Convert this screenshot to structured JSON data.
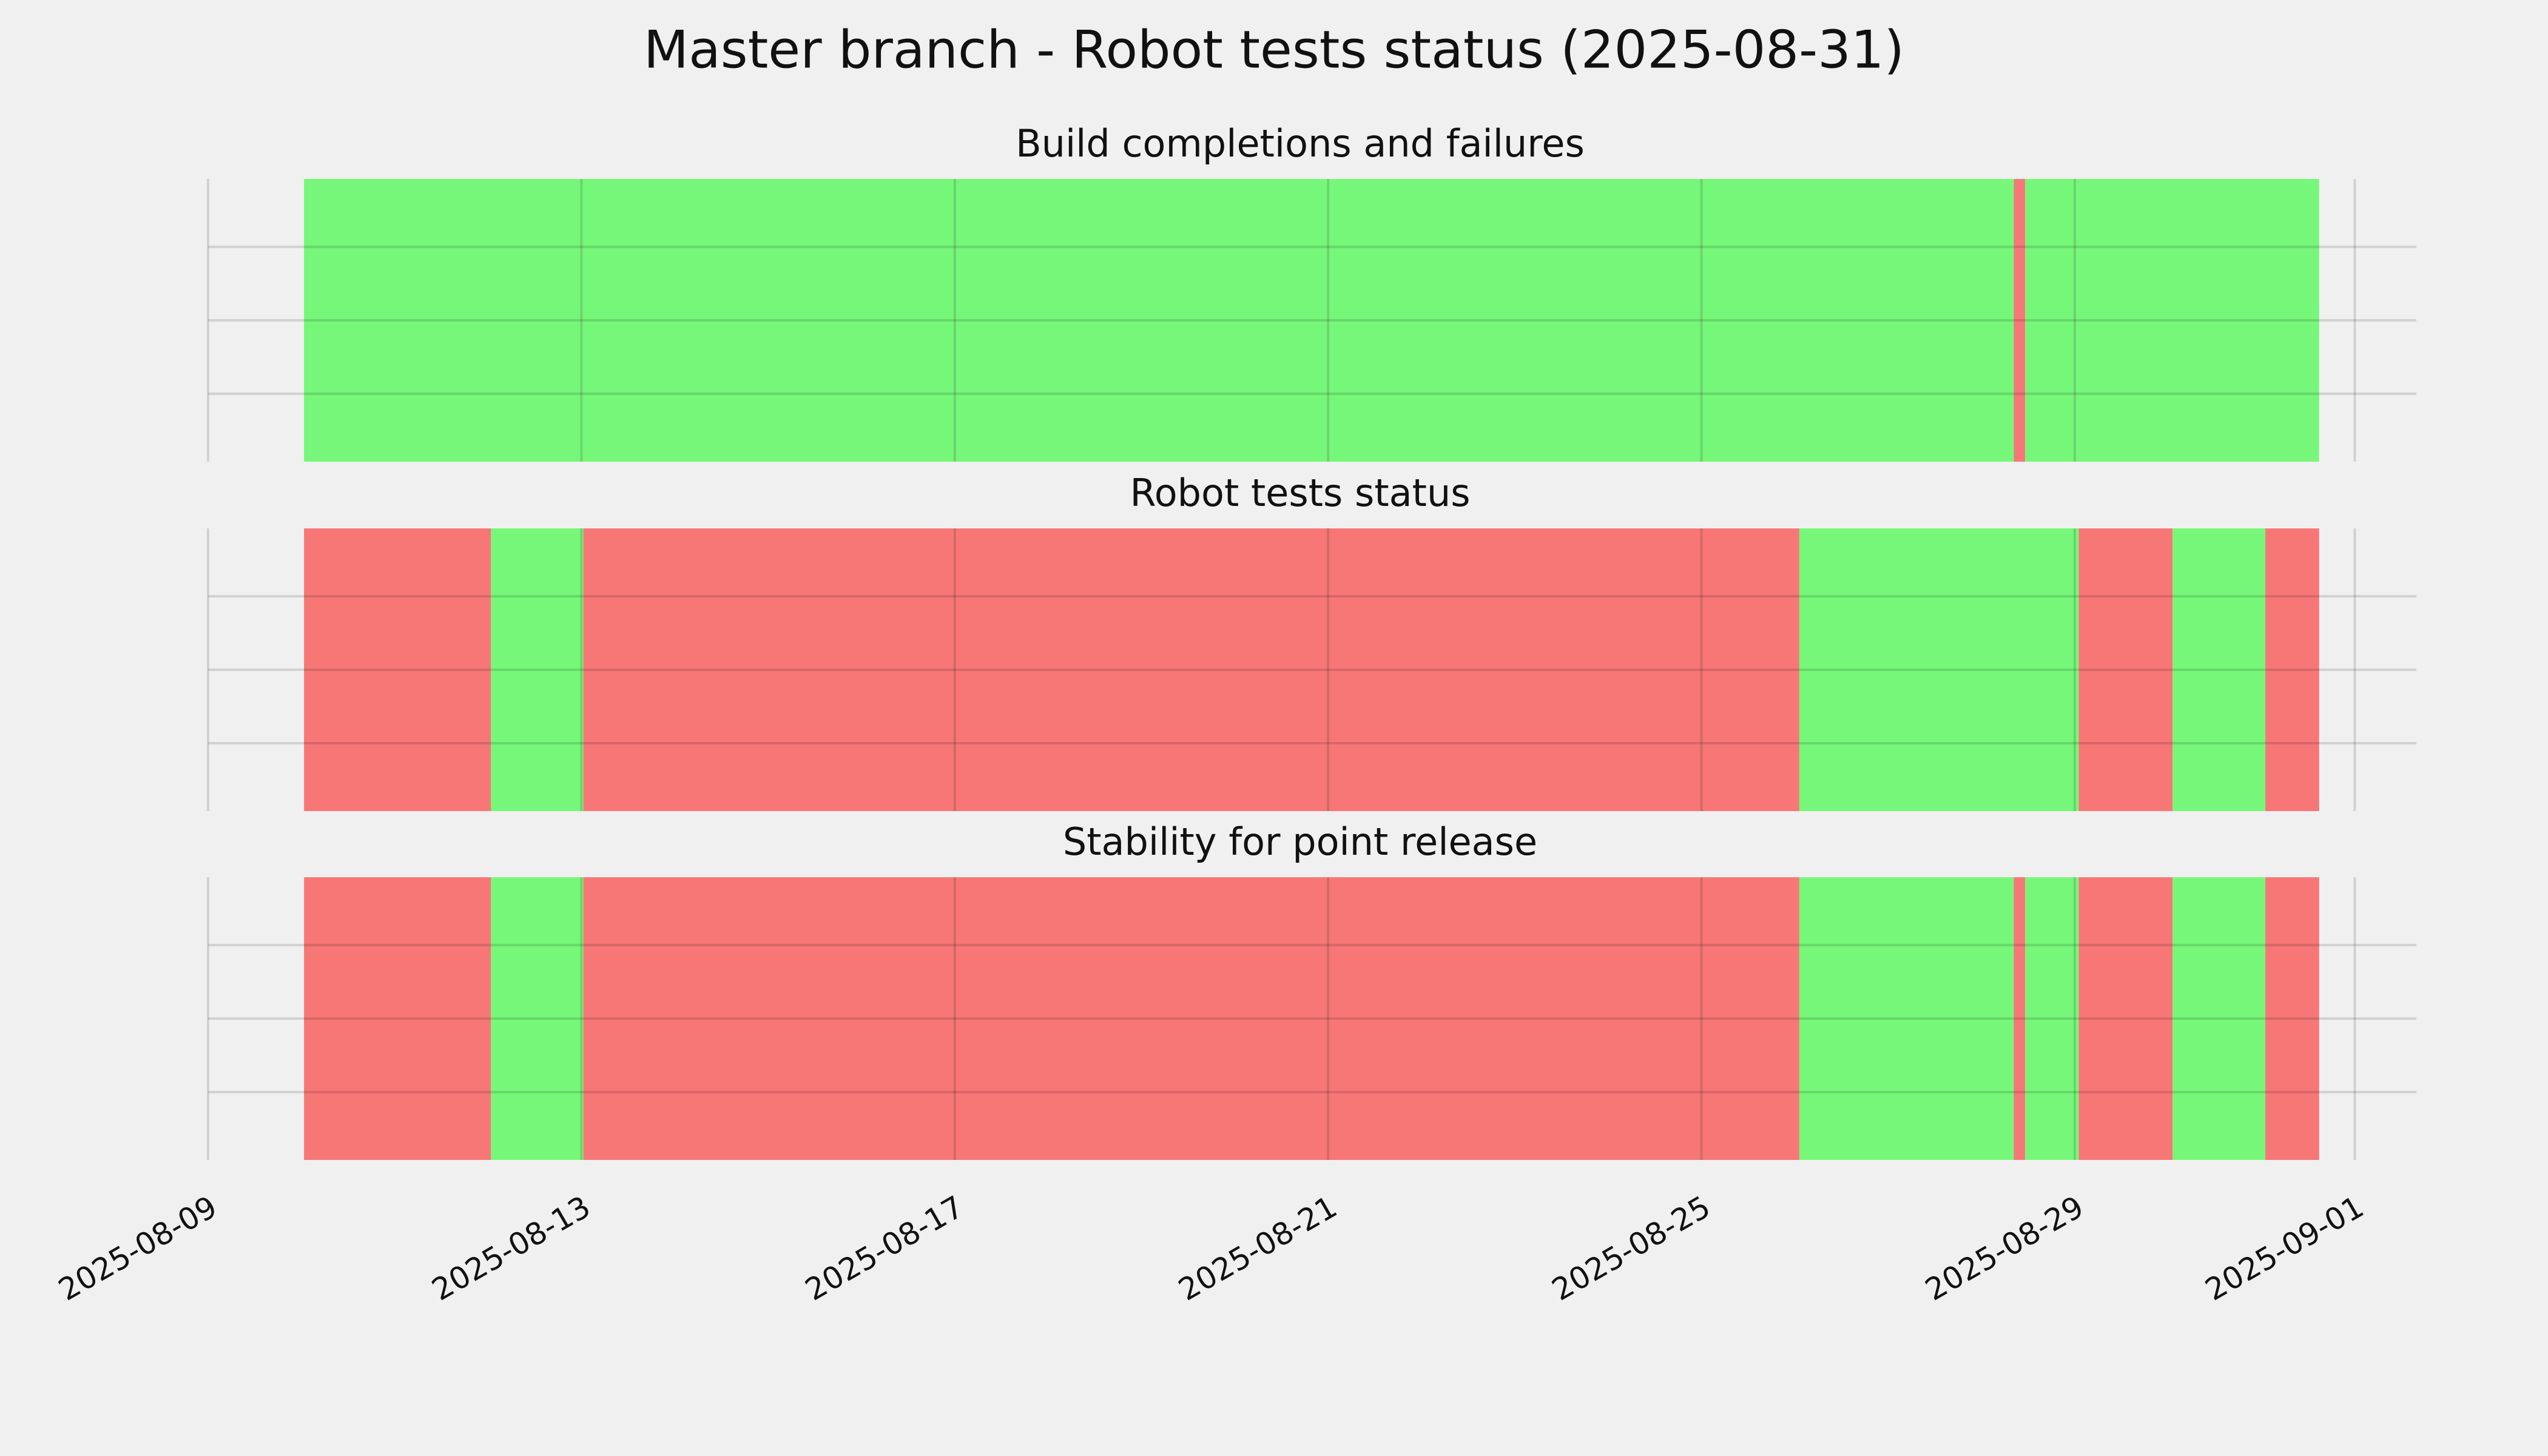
{
  "title": "Master branch - Robot tests status (2025-08-31)",
  "chart_data": {
    "type": "timeline",
    "xlim": [
      "2025-08-09T00:00",
      "2025-09-01T15:50"
    ],
    "xticks": [
      "2025-08-09",
      "2025-08-13",
      "2025-08-17",
      "2025-08-21",
      "2025-08-25",
      "2025-08-29",
      "2025-09-01"
    ],
    "grid": true,
    "panels": [
      {
        "title": "Build completions and failures",
        "starts": [
          "2025-08-10T00:40",
          "2025-08-28T08:20",
          "2025-08-28T11:15"
        ],
        "ends": [
          "2025-08-28T08:20",
          "2025-08-28T11:15",
          "2025-08-31T14:50"
        ],
        "colors": [
          "#77f77a",
          "#f77777",
          "#77f77a"
        ]
      },
      {
        "title": "Robot tests status",
        "starts": [
          "2025-08-10T00:40",
          "2025-08-12T00:45",
          "2025-08-13T00:30",
          "2025-08-26T01:10",
          "2025-08-29T01:00",
          "2025-08-30T01:10",
          "2025-08-31T01:00"
        ],
        "ends": [
          "2025-08-12T00:45",
          "2025-08-13T00:30",
          "2025-08-26T01:10",
          "2025-08-29T01:00",
          "2025-08-30T01:10",
          "2025-08-31T01:00",
          "2025-08-31T14:50"
        ],
        "colors": [
          "#f77777",
          "#77f77a",
          "#f77777",
          "#77f77a",
          "#f77777",
          "#77f77a",
          "#f77777"
        ]
      },
      {
        "title": "Stability for point release",
        "starts": [
          "2025-08-10T00:40",
          "2025-08-12T00:45",
          "2025-08-13T00:30",
          "2025-08-26T01:10",
          "2025-08-28T08:20",
          "2025-08-28T11:15",
          "2025-08-29T01:00",
          "2025-08-30T01:10",
          "2025-08-31T01:00"
        ],
        "ends": [
          "2025-08-12T00:45",
          "2025-08-13T00:30",
          "2025-08-26T01:10",
          "2025-08-28T08:20",
          "2025-08-28T11:15",
          "2025-08-29T01:00",
          "2025-08-30T01:10",
          "2025-08-31T01:00",
          "2025-08-31T14:50"
        ],
        "colors": [
          "#f77777",
          "#77f77a",
          "#f77777",
          "#77f77a",
          "#f77777",
          "#77f77a",
          "#f77777",
          "#77f77a",
          "#f77777"
        ]
      }
    ]
  }
}
